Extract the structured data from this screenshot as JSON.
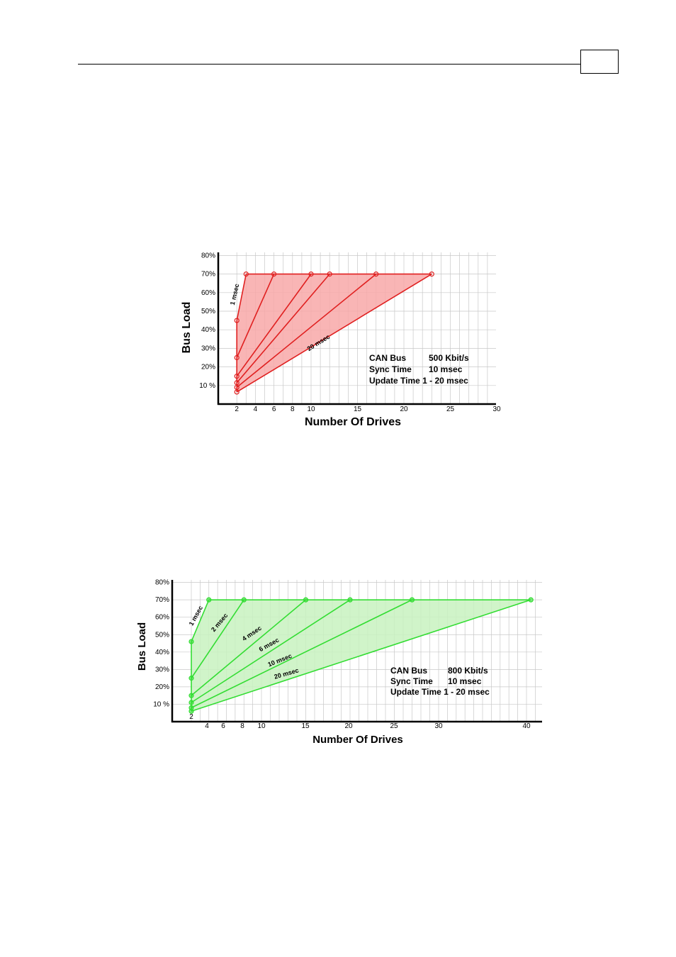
{
  "chart_data": [
    {
      "type": "line",
      "xlabel": "Number Of Drives",
      "ylabel": "Bus Load",
      "xlim": [
        0,
        30
      ],
      "ylim": [
        0,
        80
      ],
      "x_ticks": [
        2,
        4,
        6,
        8,
        10,
        15,
        20,
        25,
        30
      ],
      "y_tick_values": [
        10,
        20,
        30,
        40,
        50,
        60,
        70,
        80
      ],
      "y_tick_labels": [
        "10 %",
        "20%",
        "30%",
        "40%",
        "50%",
        "60%",
        "70%",
        "80%"
      ],
      "grid": true,
      "color": "#e02020",
      "fill_color": "#f8a8a8",
      "series": [
        {
          "name": "1 msec",
          "points": [
            [
              2,
              45
            ],
            [
              3,
              70
            ]
          ]
        },
        {
          "points": [
            [
              2,
              25
            ],
            [
              6,
              70
            ]
          ]
        },
        {
          "points": [
            [
              2,
              15
            ],
            [
              10,
              70
            ]
          ]
        },
        {
          "points": [
            [
              2,
              11.5
            ],
            [
              12,
              70
            ]
          ]
        },
        {
          "points": [
            [
              2,
              9
            ],
            [
              17,
              70
            ]
          ]
        },
        {
          "name": "20 msec",
          "points": [
            [
              2,
              6.5
            ],
            [
              23,
              70
            ]
          ]
        }
      ],
      "vertical_segment": [
        [
          2,
          6.5
        ],
        [
          2,
          45
        ]
      ],
      "saturation_line": [
        [
          3,
          70
        ],
        [
          23,
          70
        ]
      ],
      "info_box": [
        {
          "label": "CAN Bus",
          "value": "500 Kbit/s"
        },
        {
          "label": "Sync Time",
          "value": "10 msec"
        },
        {
          "label": "Update Time 1 - 20 msec",
          "value": ""
        }
      ]
    },
    {
      "type": "line",
      "xlabel": "Number Of Drives",
      "ylabel": "Bus Load",
      "xlim": [
        0,
        42
      ],
      "ylim": [
        0,
        80
      ],
      "x_ticks": [
        2,
        4,
        6,
        8,
        10,
        15,
        20,
        25,
        30,
        40
      ],
      "y_tick_values": [
        10,
        20,
        30,
        40,
        50,
        60,
        70,
        80
      ],
      "y_tick_labels": [
        "10 %",
        "20%",
        "30%",
        "40%",
        "50%",
        "60%",
        "70%",
        "80%"
      ],
      "grid": true,
      "color": "#33dd33",
      "fill_color": "#c8f2c0",
      "series": [
        {
          "name": "1 msec",
          "points": [
            [
              2,
              46
            ],
            [
              4,
              70
            ]
          ]
        },
        {
          "name": "2 msec",
          "points": [
            [
              2,
              25
            ],
            [
              8,
              70
            ]
          ]
        },
        {
          "name": "4 msec",
          "points": [
            [
              2,
              15
            ],
            [
              15,
              70
            ]
          ]
        },
        {
          "name": "6 msec",
          "points": [
            [
              2,
              11
            ],
            [
              20,
              70
            ]
          ]
        },
        {
          "name": "10 msec",
          "points": [
            [
              2,
              8
            ],
            [
              27,
              70
            ]
          ]
        },
        {
          "name": "20 msec",
          "points": [
            [
              2,
              6
            ],
            [
              40.5,
              70
            ]
          ]
        }
      ],
      "vertical_segment": [
        [
          2,
          6
        ],
        [
          2,
          46
        ]
      ],
      "saturation_line": [
        [
          4,
          70
        ],
        [
          40.5,
          70
        ]
      ],
      "info_box": [
        {
          "label": "CAN Bus",
          "value": "800 Kbit/s"
        },
        {
          "label": "Sync Time",
          "value": "10 msec"
        },
        {
          "label": "Update Time 1 - 20 msec",
          "value": ""
        }
      ]
    }
  ]
}
